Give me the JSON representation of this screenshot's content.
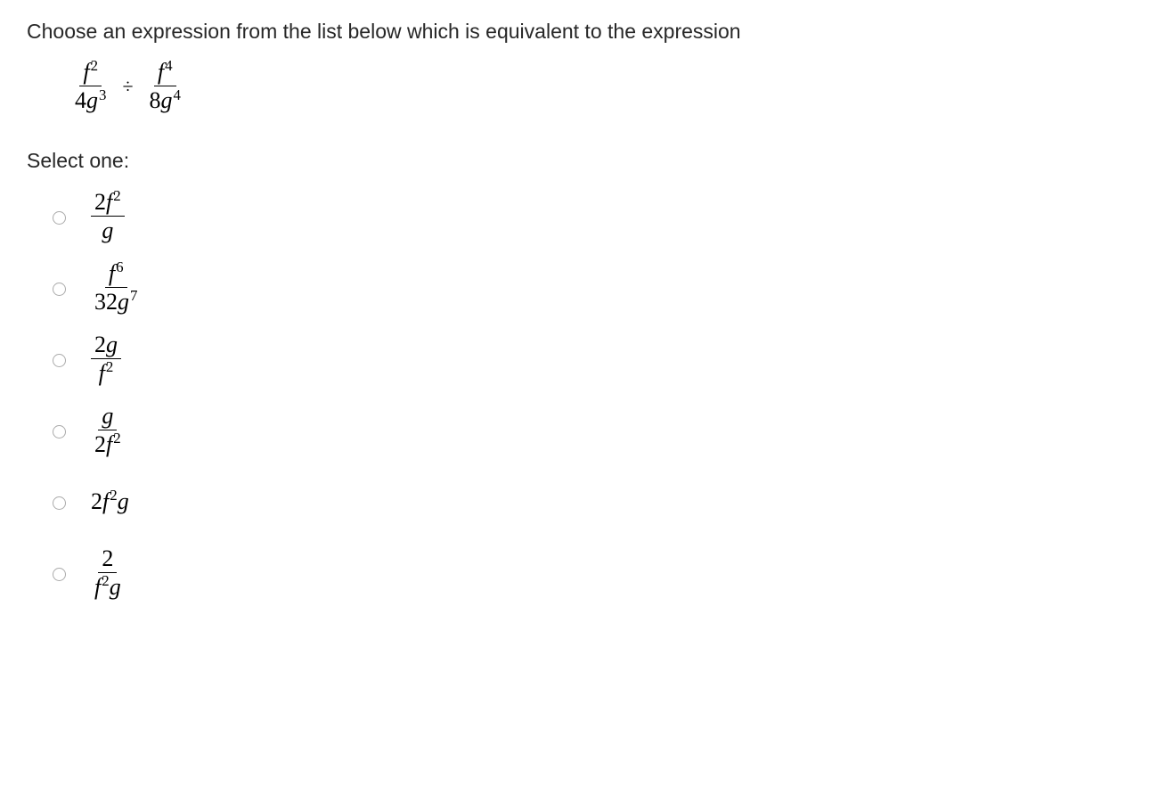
{
  "question": "Choose an expression from the list below which is equivalent to the expression",
  "main_fraction_1": {
    "num_base": "f",
    "num_exp": "2",
    "den_coef": "4",
    "den_base": "g",
    "den_exp": "3"
  },
  "operator": "÷",
  "main_fraction_2": {
    "num_base": "f",
    "num_exp": "4",
    "den_coef": "8",
    "den_base": "g",
    "den_exp": "4"
  },
  "select_label": "Select one:",
  "options": {
    "a": {
      "num_coef": "2",
      "num_base": "f",
      "num_exp": "2",
      "den_base": "g"
    },
    "b": {
      "num_base": "f",
      "num_exp": "6",
      "den_coef": "32",
      "den_base": "g",
      "den_exp": "7"
    },
    "c": {
      "num_coef": "2",
      "num_base": "g",
      "den_base": "f",
      "den_exp": "2"
    },
    "d": {
      "num_base": "g",
      "den_coef": "2",
      "den_base": "f",
      "den_exp": "2"
    },
    "e": {
      "coef": "2",
      "base1": "f",
      "exp1": "2",
      "base2": "g"
    },
    "f": {
      "num_coef": "2",
      "den_base1": "f",
      "den_exp1": "2",
      "den_base2": "g"
    }
  },
  "colors": {
    "text": "#272727",
    "background": "#ffffff",
    "border": "#000000",
    "radio_border": "#aaaaaa"
  },
  "typography": {
    "question_fontsize": 23,
    "math_fontsize": 26,
    "math_family": "Times New Roman",
    "ui_family": "Arial"
  }
}
